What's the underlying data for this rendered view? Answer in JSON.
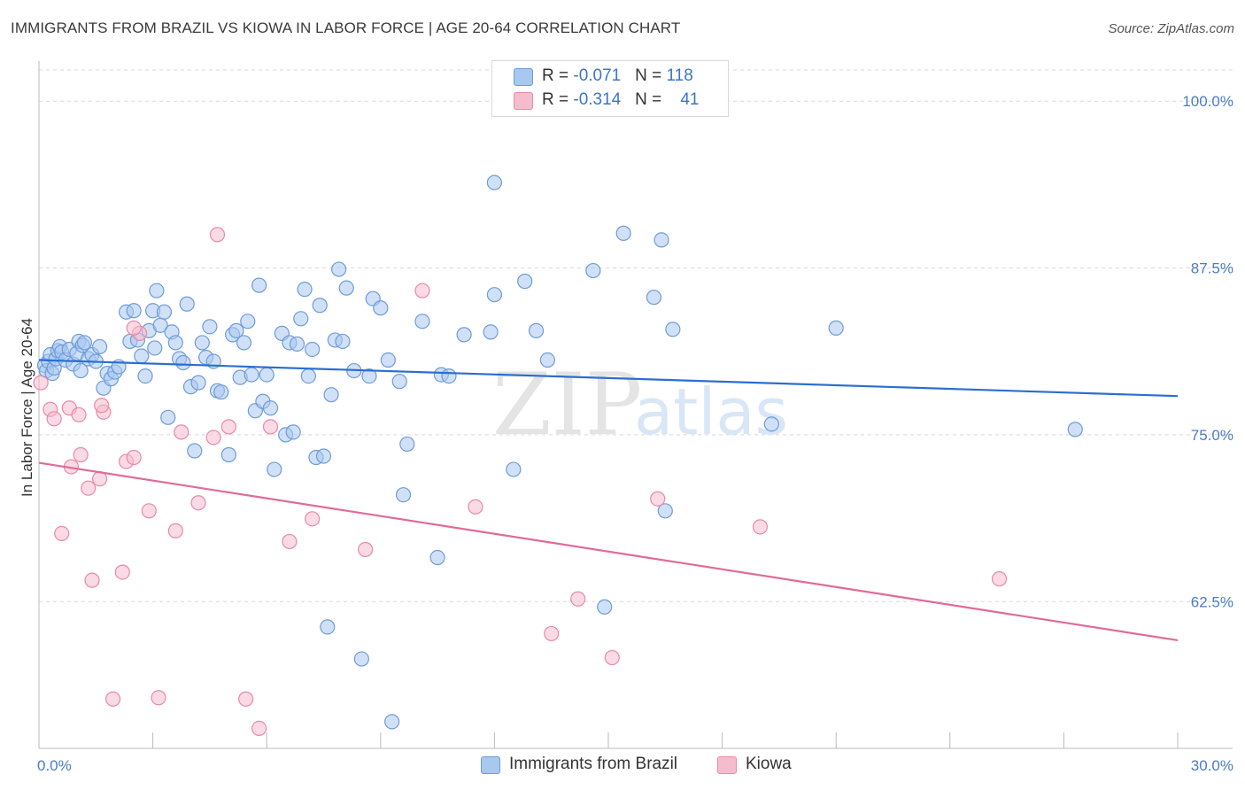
{
  "header": {
    "title": "IMMIGRANTS FROM BRAZIL VS KIOWA IN LABOR FORCE | AGE 20-64 CORRELATION CHART",
    "source": "Source: ZipAtlas.com"
  },
  "watermark": {
    "zip": "ZIP",
    "atlas": "atlas"
  },
  "legend": {
    "rows": [
      {
        "r_label": "R = ",
        "r_value": "-0.071",
        "n_label": "N = ",
        "n_value": "118"
      },
      {
        "r_label": "R = ",
        "r_value": "-0.314",
        "n_label": "N = ",
        "n_value": "41"
      }
    ]
  },
  "colors": {
    "blue_fill": "#a9c8f0",
    "blue_stroke": "#6f9bd8",
    "blue_line": "#2a6fd0",
    "pink_fill": "#f5bccd",
    "pink_stroke": "#e98aa8",
    "pink_line": "#e06b97",
    "grid": "#d9d9d9",
    "tick_label": "#4a7cc7"
  },
  "chart_data": {
    "type": "scatter",
    "title": "IMMIGRANTS FROM BRAZIL VS KIOWA IN LABOR FORCE | AGE 20-64 CORRELATION CHART",
    "xlabel": "",
    "ylabel": "In Labor Force | Age 20-64",
    "xlim": [
      0,
      30
    ],
    "ylim": [
      51.5,
      103
    ],
    "x_tick_labels": [
      "0.0%",
      "30.0%"
    ],
    "y_ticks": [
      62.5,
      75.0,
      87.5,
      100.0
    ],
    "y_tick_labels": [
      "62.5%",
      "75.0%",
      "87.5%",
      "100.0%"
    ],
    "grid": "horizontal dashed",
    "legend_placement": "top-center",
    "series": [
      {
        "name": "Immigrants from Brazil",
        "color": "#a9c8f0",
        "trend": {
          "x": [
            0,
            30
          ],
          "y": [
            80.6,
            77.9
          ]
        },
        "points": [
          [
            0.15,
            80.2
          ],
          [
            0.2,
            79.8
          ],
          [
            0.25,
            80.5
          ],
          [
            0.3,
            81.0
          ],
          [
            0.35,
            79.6
          ],
          [
            0.4,
            80.0
          ],
          [
            0.45,
            80.7
          ],
          [
            0.5,
            81.3
          ],
          [
            0.55,
            81.6
          ],
          [
            0.6,
            81.2
          ],
          [
            0.7,
            80.6
          ],
          [
            0.8,
            81.4
          ],
          [
            0.9,
            80.3
          ],
          [
            1.0,
            81.1
          ],
          [
            1.05,
            82.0
          ],
          [
            1.1,
            79.8
          ],
          [
            1.15,
            81.7
          ],
          [
            1.2,
            81.9
          ],
          [
            1.3,
            80.7
          ],
          [
            1.4,
            81.0
          ],
          [
            1.5,
            80.5
          ],
          [
            1.6,
            81.6
          ],
          [
            1.7,
            78.5
          ],
          [
            1.8,
            79.6
          ],
          [
            1.9,
            79.2
          ],
          [
            2.0,
            79.7
          ],
          [
            2.1,
            80.1
          ],
          [
            2.3,
            84.2
          ],
          [
            2.4,
            82.0
          ],
          [
            2.5,
            84.3
          ],
          [
            2.6,
            82.1
          ],
          [
            2.7,
            80.9
          ],
          [
            2.8,
            79.4
          ],
          [
            2.9,
            82.8
          ],
          [
            3.0,
            84.3
          ],
          [
            3.05,
            81.5
          ],
          [
            3.1,
            85.8
          ],
          [
            3.2,
            83.2
          ],
          [
            3.3,
            84.2
          ],
          [
            3.4,
            76.3
          ],
          [
            3.5,
            82.7
          ],
          [
            3.6,
            81.9
          ],
          [
            3.7,
            80.7
          ],
          [
            3.8,
            80.4
          ],
          [
            3.9,
            84.8
          ],
          [
            4.0,
            78.6
          ],
          [
            4.1,
            73.8
          ],
          [
            4.2,
            78.9
          ],
          [
            4.3,
            81.9
          ],
          [
            4.4,
            80.8
          ],
          [
            4.5,
            83.1
          ],
          [
            4.6,
            80.5
          ],
          [
            4.7,
            78.3
          ],
          [
            4.8,
            78.2
          ],
          [
            5.0,
            73.5
          ],
          [
            5.1,
            82.5
          ],
          [
            5.2,
            82.8
          ],
          [
            5.3,
            79.3
          ],
          [
            5.4,
            81.9
          ],
          [
            5.5,
            83.5
          ],
          [
            5.6,
            79.5
          ],
          [
            5.7,
            76.8
          ],
          [
            5.8,
            86.2
          ],
          [
            5.9,
            77.5
          ],
          [
            6.0,
            79.5
          ],
          [
            6.1,
            77.0
          ],
          [
            6.2,
            72.4
          ],
          [
            6.4,
            82.6
          ],
          [
            6.5,
            75.0
          ],
          [
            6.6,
            81.9
          ],
          [
            6.7,
            75.2
          ],
          [
            6.8,
            81.8
          ],
          [
            6.9,
            83.7
          ],
          [
            7.0,
            85.9
          ],
          [
            7.1,
            79.4
          ],
          [
            7.2,
            81.4
          ],
          [
            7.3,
            73.3
          ],
          [
            7.4,
            84.7
          ],
          [
            7.5,
            73.4
          ],
          [
            7.6,
            60.6
          ],
          [
            7.7,
            78.0
          ],
          [
            7.8,
            82.1
          ],
          [
            7.9,
            87.4
          ],
          [
            8.0,
            82.0
          ],
          [
            8.1,
            86.0
          ],
          [
            8.3,
            79.8
          ],
          [
            8.5,
            58.2
          ],
          [
            8.7,
            79.4
          ],
          [
            8.8,
            85.2
          ],
          [
            9.0,
            84.5
          ],
          [
            9.2,
            80.6
          ],
          [
            9.3,
            53.5
          ],
          [
            9.5,
            79.0
          ],
          [
            9.6,
            70.5
          ],
          [
            9.7,
            74.3
          ],
          [
            10.1,
            83.5
          ],
          [
            10.5,
            65.8
          ],
          [
            10.6,
            79.5
          ],
          [
            10.8,
            79.4
          ],
          [
            11.2,
            82.5
          ],
          [
            11.9,
            82.7
          ],
          [
            12.0,
            85.5
          ],
          [
            12.5,
            72.4
          ],
          [
            12.8,
            86.5
          ],
          [
            13.1,
            82.8
          ],
          [
            13.4,
            80.6
          ],
          [
            12.0,
            93.9
          ],
          [
            14.6,
            87.3
          ],
          [
            14.9,
            62.1
          ],
          [
            15.4,
            90.1
          ],
          [
            16.2,
            85.3
          ],
          [
            16.4,
            89.6
          ],
          [
            16.5,
            69.3
          ],
          [
            16.7,
            82.9
          ],
          [
            19.3,
            75.8
          ],
          [
            21.0,
            83.0
          ],
          [
            27.3,
            75.4
          ]
        ]
      },
      {
        "name": "Kiowa",
        "color": "#f5bccd",
        "trend": {
          "x": [
            0,
            30
          ],
          "y": [
            72.9,
            59.6
          ]
        },
        "points": [
          [
            0.05,
            78.9
          ],
          [
            0.3,
            76.9
          ],
          [
            0.4,
            76.2
          ],
          [
            0.6,
            67.6
          ],
          [
            0.8,
            77.0
          ],
          [
            0.85,
            72.6
          ],
          [
            1.05,
            76.5
          ],
          [
            1.1,
            73.5
          ],
          [
            1.3,
            71.0
          ],
          [
            1.4,
            64.1
          ],
          [
            1.6,
            71.7
          ],
          [
            1.7,
            76.7
          ],
          [
            1.65,
            77.2
          ],
          [
            1.95,
            55.2
          ],
          [
            2.2,
            64.7
          ],
          [
            2.3,
            73.0
          ],
          [
            2.5,
            73.3
          ],
          [
            2.65,
            82.6
          ],
          [
            2.9,
            69.3
          ],
          [
            3.15,
            55.3
          ],
          [
            3.6,
            67.8
          ],
          [
            3.75,
            75.2
          ],
          [
            4.2,
            69.9
          ],
          [
            4.6,
            74.8
          ],
          [
            4.7,
            90.0
          ],
          [
            5.0,
            75.6
          ],
          [
            5.45,
            55.2
          ],
          [
            5.8,
            53.0
          ],
          [
            6.1,
            75.6
          ],
          [
            6.6,
            67.0
          ],
          [
            7.2,
            68.7
          ],
          [
            8.6,
            66.4
          ],
          [
            10.1,
            85.8
          ],
          [
            11.5,
            69.6
          ],
          [
            13.5,
            60.1
          ],
          [
            14.2,
            62.7
          ],
          [
            15.1,
            58.3
          ],
          [
            16.3,
            70.2
          ],
          [
            19.0,
            68.1
          ],
          [
            25.3,
            64.2
          ],
          [
            2.5,
            83.0
          ]
        ]
      }
    ]
  },
  "bottom_legend": {
    "items": [
      {
        "label": "Immigrants from Brazil"
      },
      {
        "label": "Kiowa"
      }
    ]
  }
}
